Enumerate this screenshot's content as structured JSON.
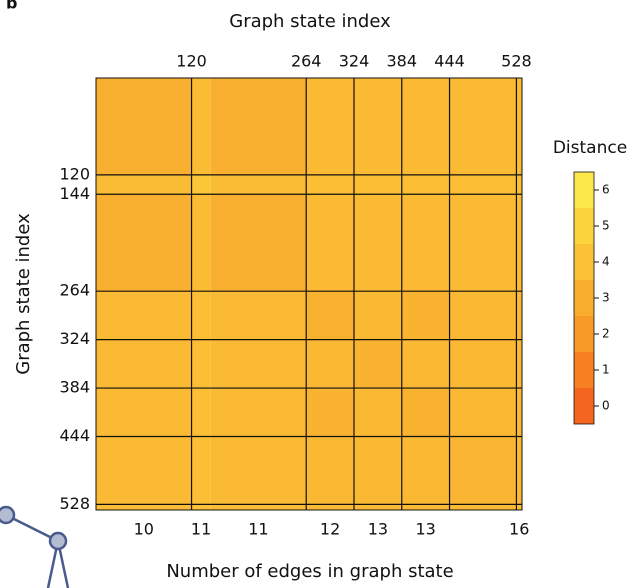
{
  "panel_label": "b",
  "chart_data": {
    "type": "heatmap",
    "title": "Graph state index",
    "y_label": "Graph state index",
    "x_label": "Number of edges in graph state",
    "legend_title": "Distance",
    "xlim": [
      0,
      535
    ],
    "ylim": [
      0,
      535
    ],
    "xticks": [
      120,
      264,
      324,
      384,
      444,
      528
    ],
    "yticks": [
      120,
      144,
      264,
      324,
      384,
      444,
      528
    ],
    "categories": [
      "10",
      "11",
      "11",
      "12",
      "13",
      "13",
      null,
      "16"
    ],
    "values": [
      [
        3.1,
        3.7,
        3.1,
        3.6,
        3.6,
        3.6,
        3.6,
        3.7
      ],
      [
        3.7,
        4.2,
        3.7,
        3.8,
        3.8,
        3.8,
        3.8,
        3.9
      ],
      [
        3.1,
        3.7,
        3.1,
        3.6,
        3.6,
        3.6,
        3.6,
        3.7
      ],
      [
        3.6,
        3.8,
        3.6,
        3.2,
        3.5,
        3.3,
        3.5,
        3.6
      ],
      [
        3.6,
        3.8,
        3.6,
        3.5,
        3.3,
        3.5,
        3.5,
        3.6
      ],
      [
        3.6,
        3.8,
        3.6,
        3.3,
        3.5,
        3.2,
        3.5,
        3.6
      ],
      [
        3.6,
        3.8,
        3.6,
        3.5,
        3.5,
        3.5,
        3.4,
        3.6
      ],
      [
        3.7,
        3.9,
        3.7,
        3.6,
        3.6,
        3.6,
        3.6,
        3.8
      ]
    ],
    "colorbar": {
      "lim": [
        -0.5,
        6.5
      ],
      "ticks": [
        0,
        1,
        2,
        3,
        4,
        5,
        6
      ],
      "colors": [
        "#f4661f",
        "#f68022",
        "#f79a28",
        "#f9ad2f",
        "#fbc236",
        "#fcd43d",
        "#fde84a"
      ]
    }
  }
}
